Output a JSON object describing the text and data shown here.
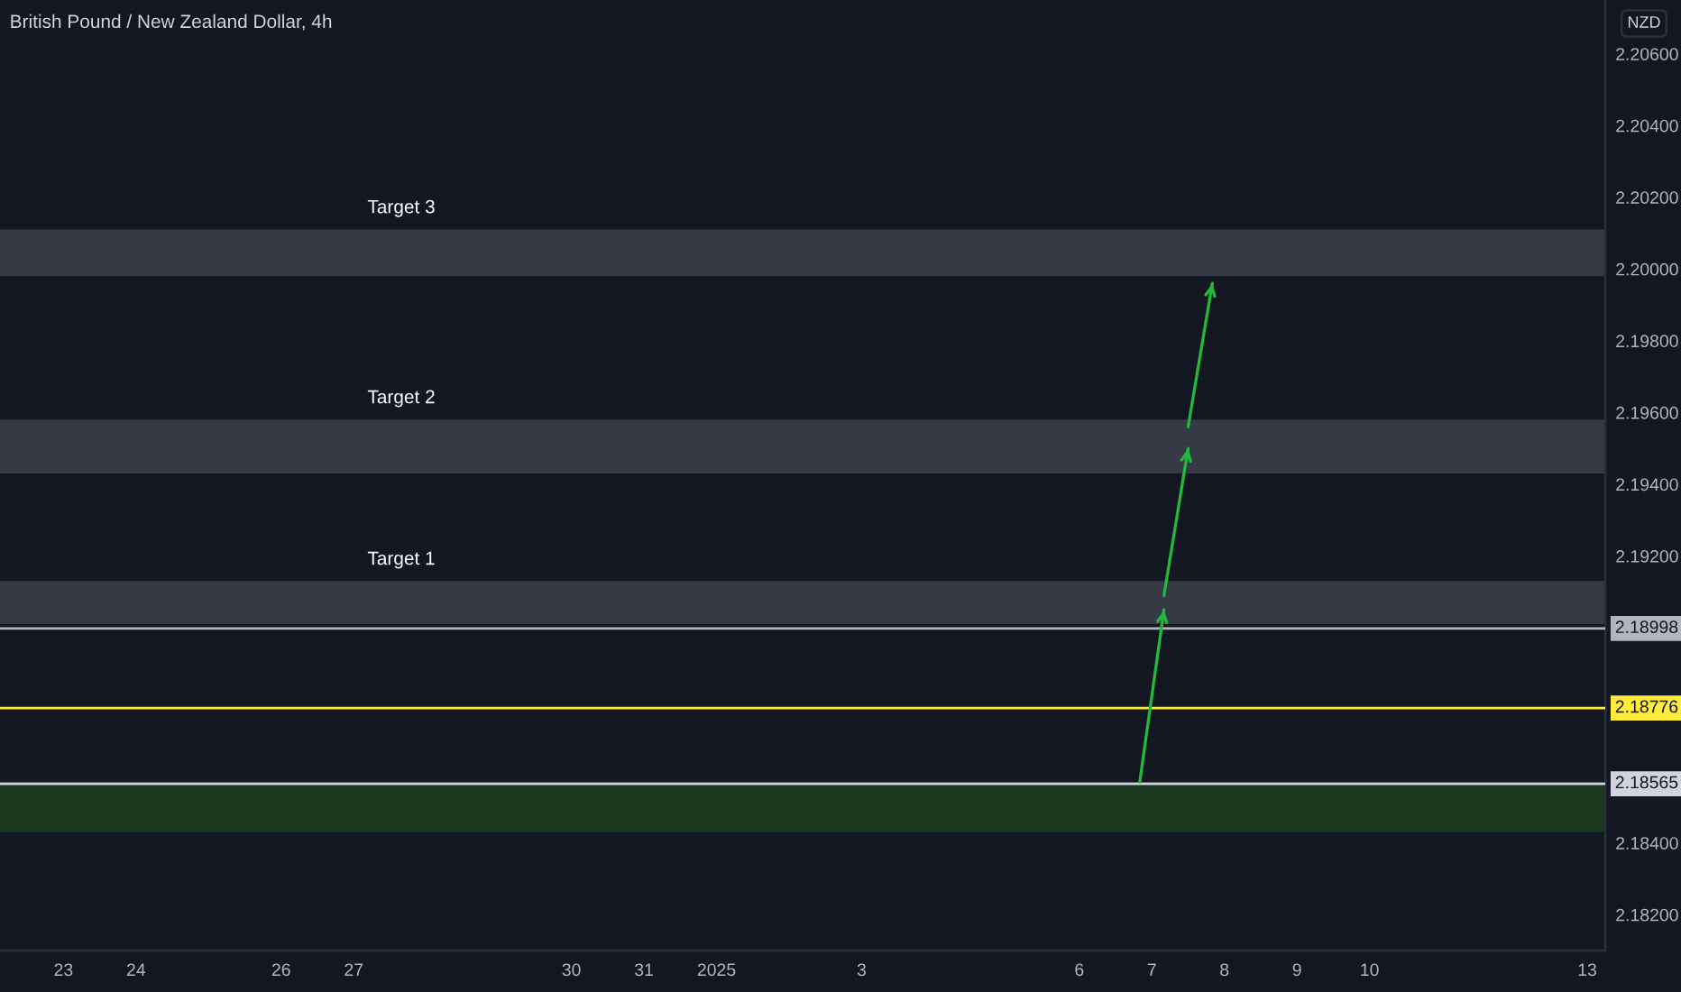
{
  "chart_data": {
    "type": "line",
    "title": "British Pound / New Zealand Dollar, 4h",
    "annotations": [
      "NZD"
    ],
    "series": [
      {
        "color": "#22b83a",
        "x": [
          "2025-01-06T20:00",
          "2025-01-07T04:00"
        ],
        "values": [
          2.1857,
          2.1905
        ]
      },
      {
        "color": "#22b83a",
        "x": [
          "2025-01-07T04:00",
          "2025-01-07T12:00"
        ],
        "values": [
          2.1909,
          2.195
        ]
      },
      {
        "color": "#22b83a",
        "x": [
          "2025-01-07T12:00",
          "2025-01-07T20:00"
        ],
        "values": [
          2.1956,
          2.1996
        ]
      }
    ],
    "xlim": [
      "2024-12-22T03:00",
      "2025-01-13T06:00"
    ],
    "xticks": [
      {
        "value": "2024-12-23",
        "label": "23"
      },
      {
        "value": "2024-12-24",
        "label": "24"
      },
      {
        "value": "2024-12-26",
        "label": "26"
      },
      {
        "value": "2024-12-27",
        "label": "27"
      },
      {
        "value": "2024-12-30",
        "label": "30"
      },
      {
        "value": "2024-12-31",
        "label": "31"
      },
      {
        "value": "2025-01-01",
        "label": "2025"
      },
      {
        "value": "2025-01-03",
        "label": "3"
      },
      {
        "value": "2025-01-06",
        "label": "6"
      },
      {
        "value": "2025-01-07",
        "label": "7"
      },
      {
        "value": "2025-01-08",
        "label": "8"
      },
      {
        "value": "2025-01-09",
        "label": "9"
      },
      {
        "value": "2025-01-10",
        "label": "10"
      },
      {
        "value": "2025-01-13",
        "label": "13"
      }
    ],
    "ylim": [
      2.181,
      2.2075
    ],
    "yticks": [
      {
        "value": 2.182,
        "label": "2.18200"
      },
      {
        "value": 2.184,
        "label": "2.18400"
      },
      {
        "value": 2.192,
        "label": "2.19200"
      },
      {
        "value": 2.194,
        "label": "2.19400"
      },
      {
        "value": 2.196,
        "label": "2.19600"
      },
      {
        "value": 2.198,
        "label": "2.19800"
      },
      {
        "value": 2.2,
        "label": "2.20000"
      },
      {
        "value": 2.202,
        "label": "2.20200"
      },
      {
        "value": 2.204,
        "label": "2.20400"
      },
      {
        "value": 2.206,
        "label": "2.20600"
      }
    ],
    "bands": [
      {
        "axis": "y",
        "from": 2.1901,
        "to": 2.1913,
        "label": "Target 1",
        "color": "#363a45"
      },
      {
        "axis": "y",
        "from": 2.1943,
        "to": 2.1958,
        "label": "Target 2",
        "color": "#363a45"
      },
      {
        "axis": "y",
        "from": 2.1998,
        "to": 2.2011,
        "label": "Target 3",
        "color": "#363a45"
      },
      {
        "axis": "y",
        "from": 2.1843,
        "to": 2.1857,
        "color": "#19381f"
      }
    ],
    "ref_lines": [
      {
        "axis": "y",
        "value": 2.18998,
        "label": "2.18998",
        "color": "#b2b5be"
      },
      {
        "axis": "y",
        "value": 2.18776,
        "label": "2.18776",
        "color": "#ffeb3b"
      },
      {
        "axis": "y",
        "value": 2.18565,
        "label": "2.18565",
        "color": "#d1d4dc"
      }
    ]
  }
}
